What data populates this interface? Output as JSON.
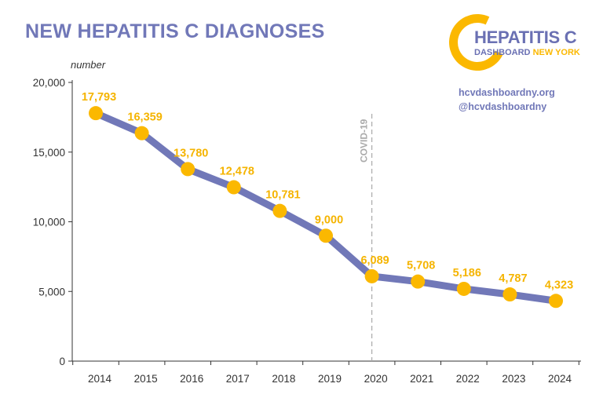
{
  "header": {
    "title": "NEW HEPATITIS C DIAGNOSES"
  },
  "logo": {
    "line1": "HEPATITIS C",
    "line2a": "DASHBOARD",
    "line2b": "NEW YORK"
  },
  "links": {
    "website": "hcvdashboardny.org",
    "social": "@hcvdashboardny"
  },
  "colors": {
    "line": "#7178b8",
    "marker": "#fbb800",
    "label": "#f5b400",
    "annotation": "#aaaaaa",
    "axis": "#333333"
  },
  "chart_data": {
    "type": "line",
    "title": "NEW HEPATITIS C DIAGNOSES",
    "ylabel": "number",
    "xlabel": "",
    "ylim": [
      0,
      20000
    ],
    "yticks": [
      0,
      5000,
      10000,
      15000,
      20000
    ],
    "ytick_labels": [
      "0",
      "5,000",
      "10,000",
      "15,000",
      "20,000"
    ],
    "categories": [
      "2014",
      "2015",
      "2016",
      "2017",
      "2018",
      "2019",
      "2020",
      "2021",
      "2022",
      "2023",
      "2024"
    ],
    "values": [
      17793,
      16359,
      13780,
      12478,
      10781,
      9000,
      6089,
      5708,
      5186,
      4787,
      4323
    ],
    "data_labels": [
      "17,793",
      "16,359",
      "13,780",
      "12,478",
      "10,781",
      "9,000",
      "6,089",
      "5,708",
      "5,186",
      "4,787",
      "4,323"
    ],
    "annotations": [
      {
        "x": "2020",
        "text": "COVID-19",
        "style": "dashed-vertical"
      }
    ],
    "grid": false,
    "legend": "none"
  }
}
